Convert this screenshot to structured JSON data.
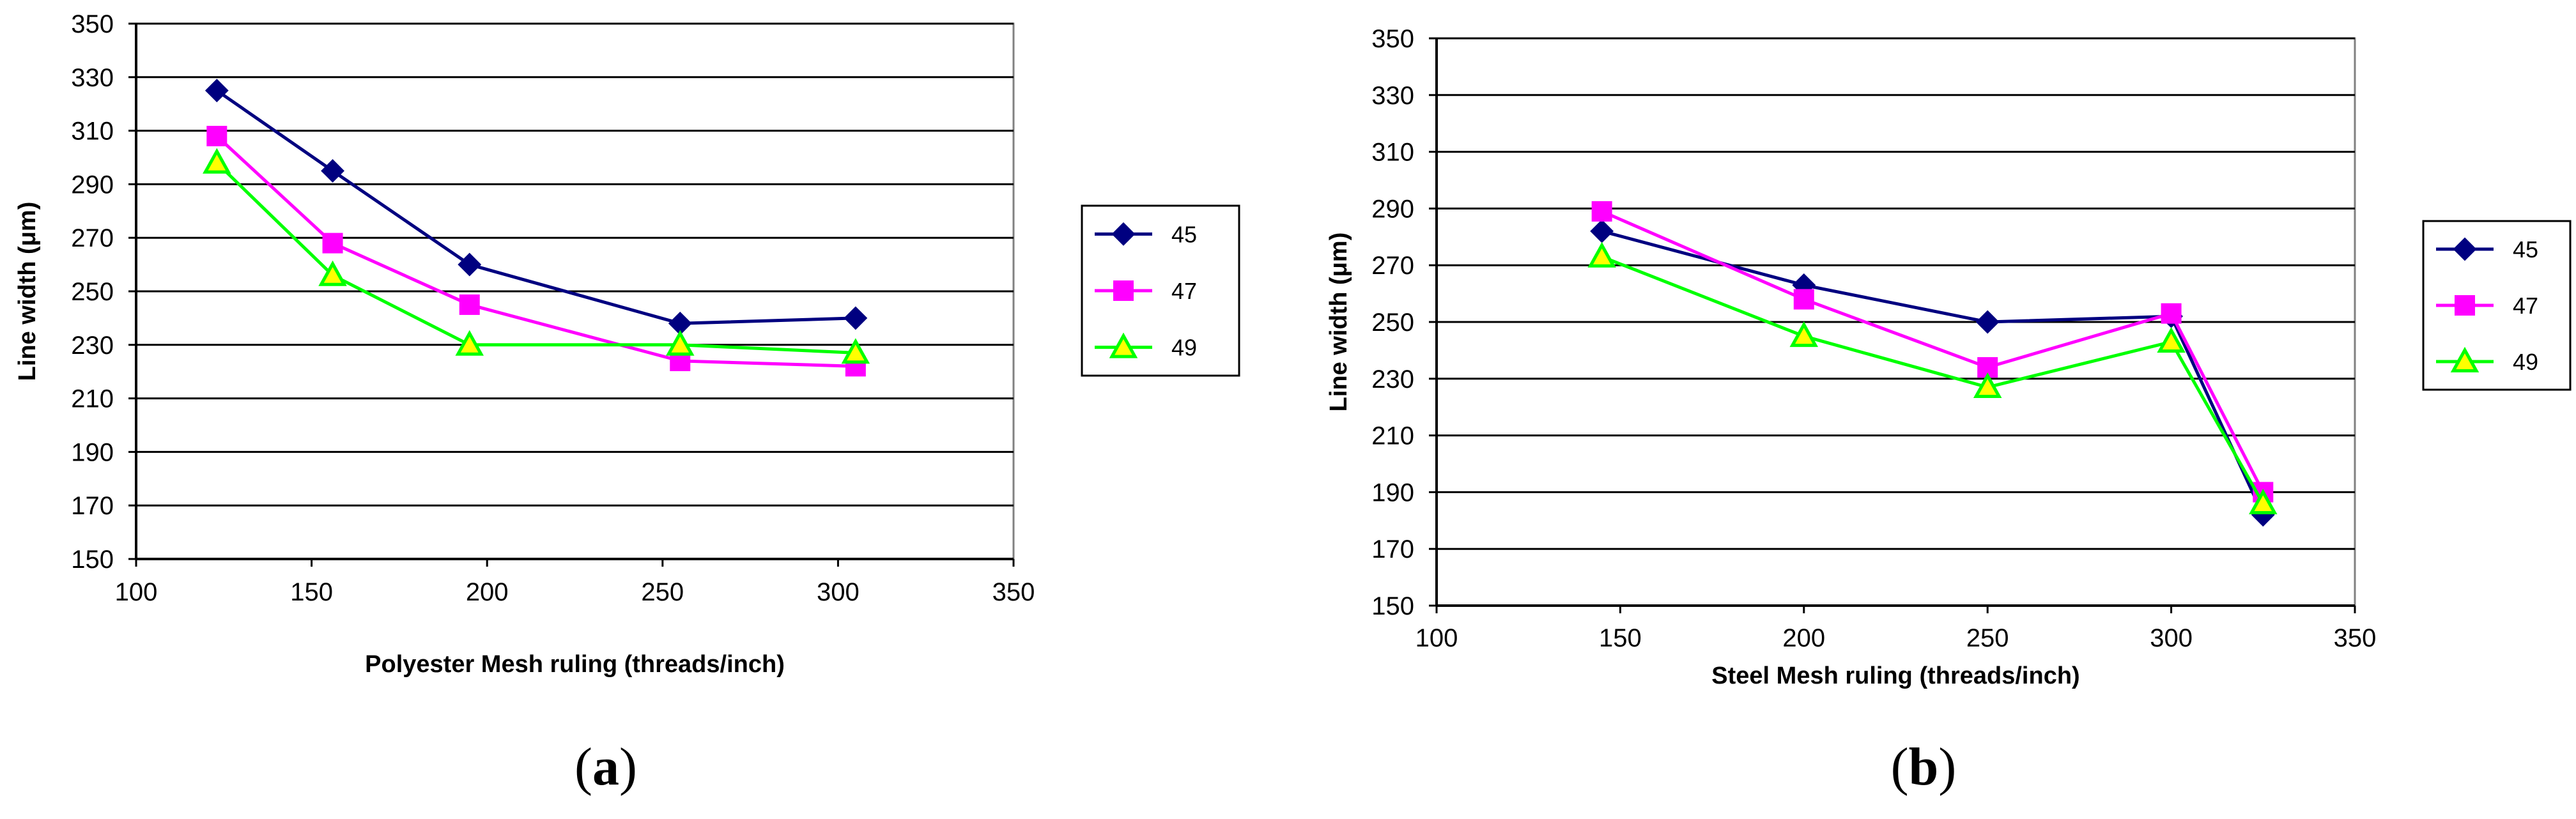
{
  "chart_data": [
    {
      "type": "line",
      "panel_label": "(a)",
      "panel_letter": "a",
      "xlabel": "Polyester Mesh ruling (threads/inch)",
      "ylabel": "Line width (μm)",
      "xlim": [
        100,
        350
      ],
      "ylim": [
        150,
        350
      ],
      "xticks": [
        100,
        150,
        200,
        250,
        300,
        350
      ],
      "yticks": [
        150,
        170,
        190,
        210,
        230,
        250,
        270,
        290,
        310,
        330,
        350
      ],
      "grid": "horizontal",
      "legend_position": "right",
      "series": [
        {
          "name": "45",
          "marker": "diamond",
          "color": "#000080",
          "x": [
            123,
            156,
            195,
            255,
            305
          ],
          "y": [
            325,
            295,
            260,
            238,
            240
          ]
        },
        {
          "name": "47",
          "marker": "square",
          "color": "#FF00FF",
          "x": [
            123,
            156,
            195,
            255,
            305
          ],
          "y": [
            308,
            268,
            245,
            224,
            222
          ]
        },
        {
          "name": "49",
          "marker": "triangle",
          "color": "#00FF00",
          "x": [
            123,
            156,
            195,
            255,
            305
          ],
          "y": [
            298,
            256,
            230,
            230,
            227
          ]
        }
      ]
    },
    {
      "type": "line",
      "panel_label": "(b)",
      "panel_letter": "b",
      "xlabel": "Steel Mesh ruling (threads/inch)",
      "ylabel": "Line width (μm)",
      "xlim": [
        100,
        350
      ],
      "ylim": [
        150,
        350
      ],
      "xticks": [
        100,
        150,
        200,
        250,
        300,
        350
      ],
      "yticks": [
        150,
        170,
        190,
        210,
        230,
        250,
        270,
        290,
        310,
        330,
        350
      ],
      "grid": "horizontal",
      "legend_position": "right",
      "series": [
        {
          "name": "45",
          "marker": "diamond",
          "color": "#000080",
          "x": [
            145,
            200,
            250,
            300,
            325
          ],
          "y": [
            282,
            263,
            250,
            252,
            182
          ]
        },
        {
          "name": "47",
          "marker": "square",
          "color": "#FF00FF",
          "x": [
            145,
            200,
            250,
            300,
            325
          ],
          "y": [
            289,
            258,
            234,
            253,
            190
          ]
        },
        {
          "name": "49",
          "marker": "triangle",
          "color": "#00FF00",
          "x": [
            145,
            200,
            250,
            300,
            325
          ],
          "y": [
            273,
            245,
            227,
            243,
            186
          ]
        }
      ]
    }
  ]
}
